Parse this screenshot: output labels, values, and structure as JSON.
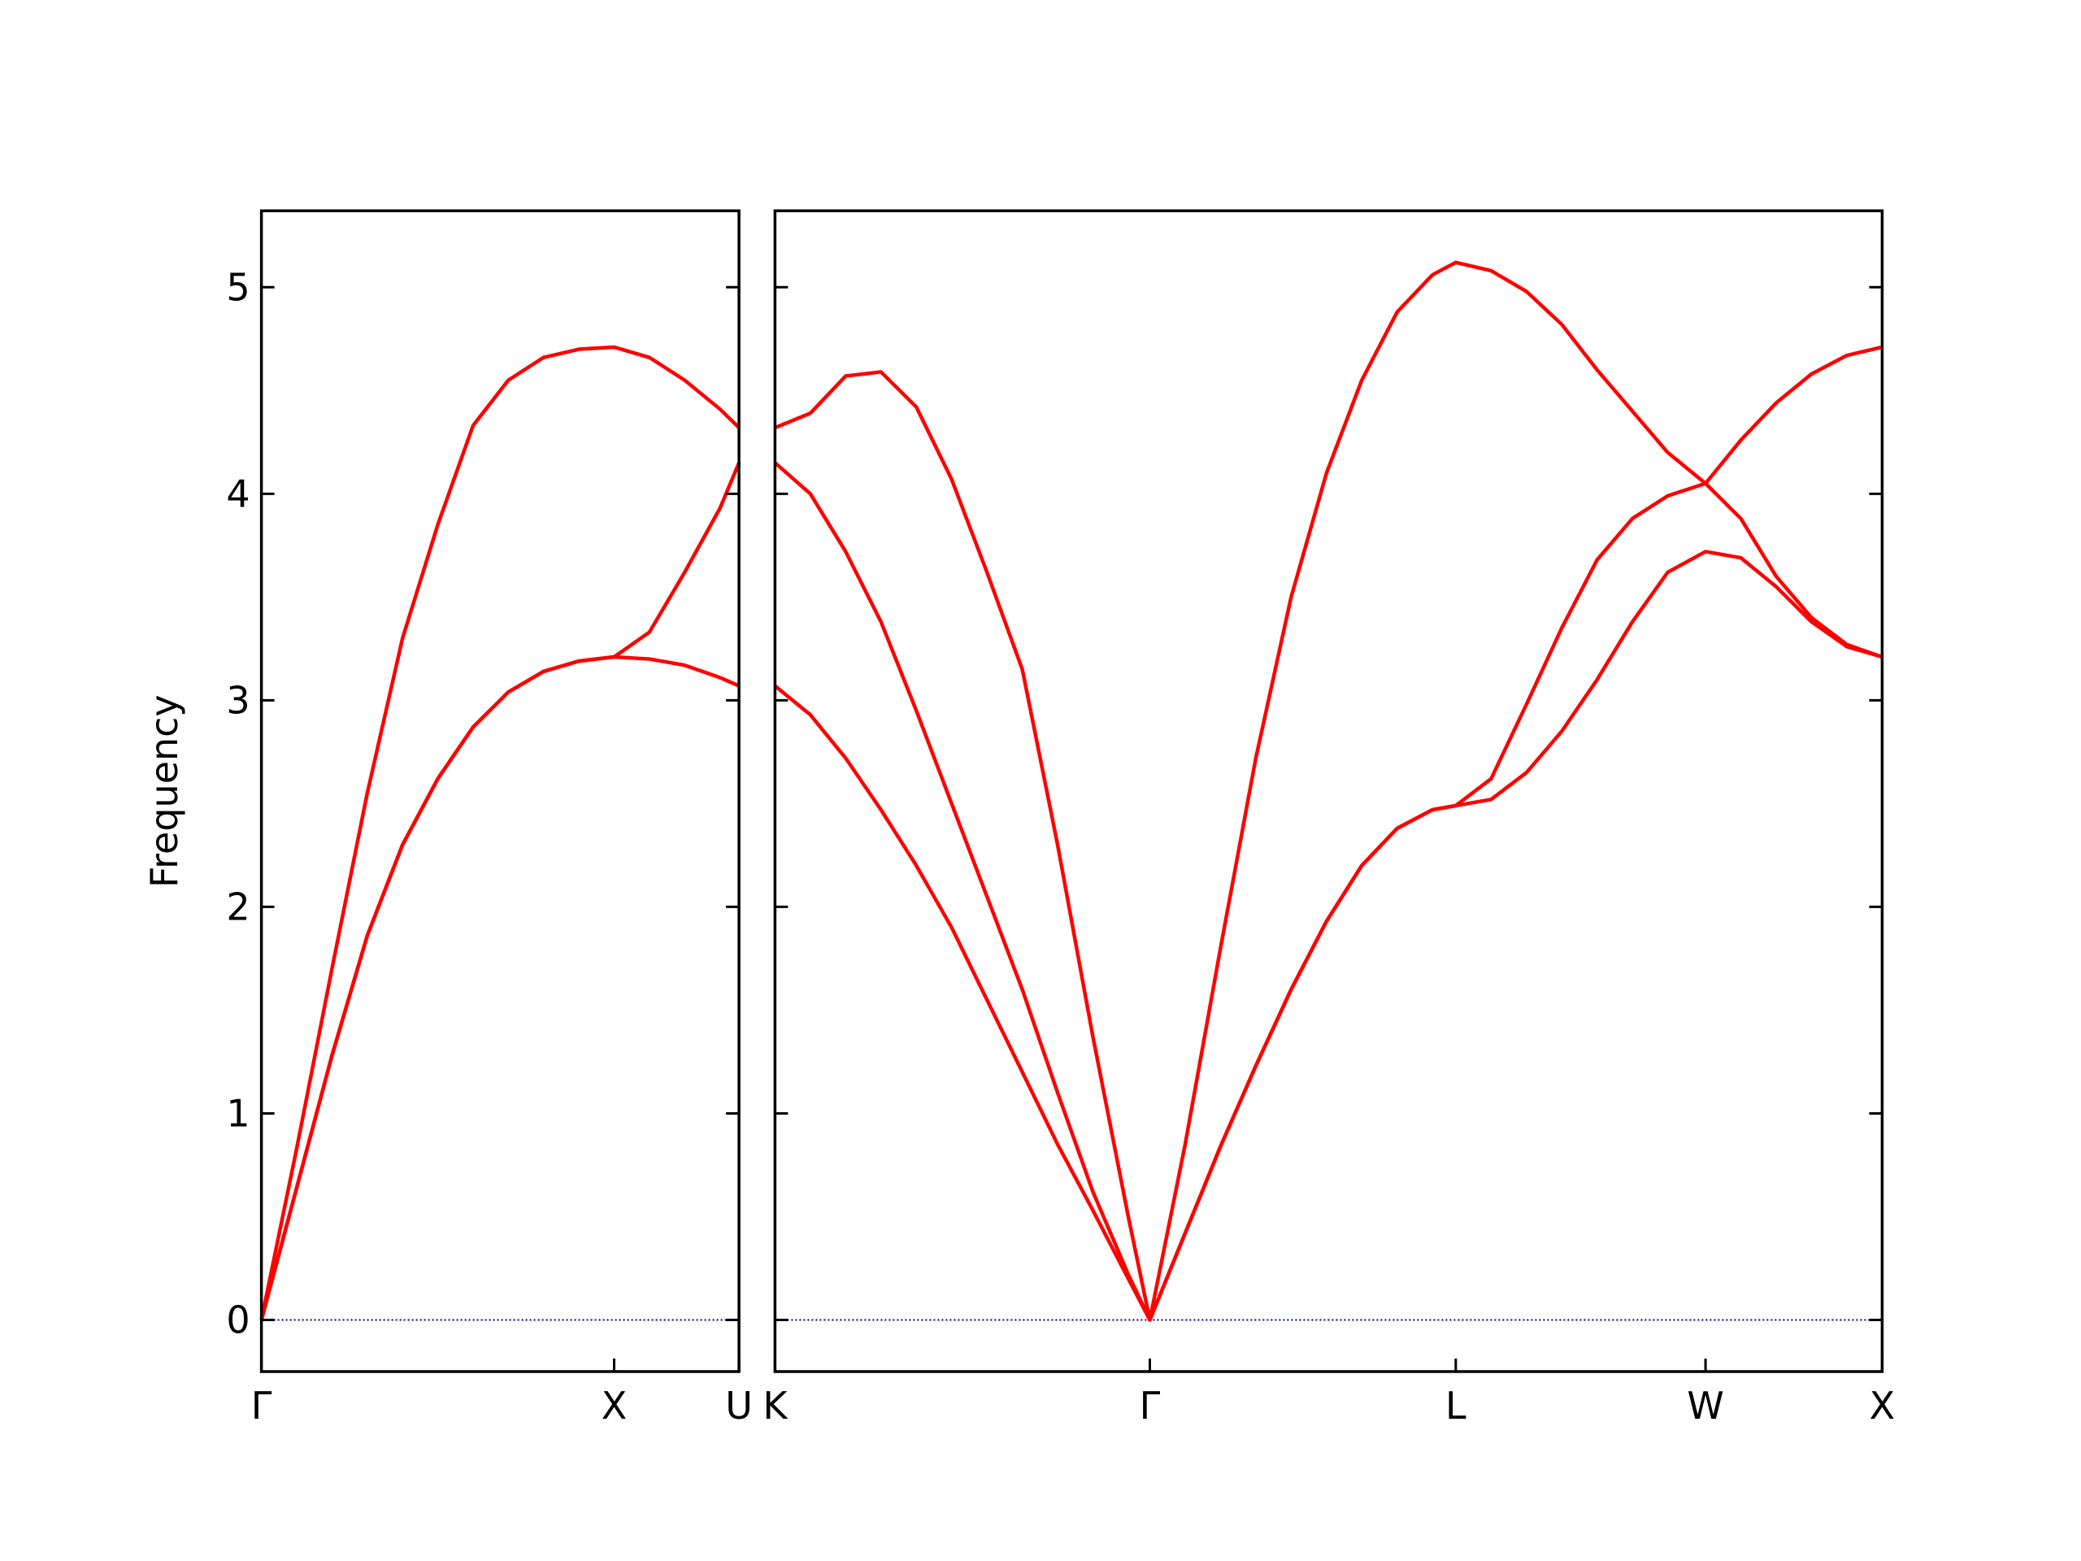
{
  "chart_data": [
    {
      "type": "line",
      "ylabel": "Frequency",
      "x": [
        0,
        0.1,
        0.2,
        0.3,
        0.4,
        0.5,
        0.6,
        0.7,
        0.8,
        0.9,
        1.0,
        1.1,
        1.2,
        1.3,
        1.354
      ],
      "series": [
        {
          "color": "#ff0000",
          "values": [
            0,
            0.83,
            1.7,
            2.55,
            3.3,
            3.85,
            4.33,
            4.55,
            4.66,
            4.7,
            4.71,
            4.66,
            4.55,
            4.41,
            4.32
          ]
        },
        {
          "color": "#ff0000",
          "values": [
            0,
            0.64,
            1.28,
            1.86,
            2.3,
            2.62,
            2.87,
            3.04,
            3.14,
            3.19,
            3.21,
            3.33,
            3.62,
            3.93,
            4.15
          ]
        },
        {
          "color": "#ff0000",
          "values": [
            0,
            0.64,
            1.28,
            1.86,
            2.3,
            2.62,
            2.87,
            3.04,
            3.14,
            3.19,
            3.21,
            3.2,
            3.17,
            3.11,
            3.07
          ]
        }
      ],
      "xlim": [
        0,
        1.354
      ],
      "xticks": [
        {
          "value": 0,
          "label": "Γ"
        },
        {
          "value": 1.0,
          "label": "X"
        },
        {
          "value": 1.354,
          "label": "U"
        }
      ],
      "ylim": [
        -0.25,
        5.37
      ],
      "yticks": [
        0,
        1,
        2,
        3,
        4,
        5
      ],
      "show_ytick_labels": true,
      "hline": 0,
      "hline_color": "#00008b"
    },
    {
      "type": "line",
      "x": [
        1.354,
        1.454,
        1.554,
        1.654,
        1.754,
        1.854,
        1.954,
        2.054,
        2.154,
        2.254,
        2.354,
        2.415,
        2.515,
        2.615,
        2.715,
        2.815,
        2.915,
        3.015,
        3.115,
        3.215,
        3.281,
        3.381,
        3.481,
        3.581,
        3.681,
        3.781,
        3.881,
        3.988,
        4.088,
        4.188,
        4.288,
        4.388,
        4.488
      ],
      "series": [
        {
          "color": "#ff0000",
          "values": [
            4.32,
            4.39,
            4.57,
            4.59,
            4.42,
            4.07,
            3.62,
            3.15,
            2.3,
            1.37,
            0.5,
            0,
            0.85,
            1.8,
            2.72,
            3.5,
            4.1,
            4.55,
            4.88,
            5.06,
            5.12,
            5.08,
            4.98,
            4.82,
            4.6,
            4.4,
            4.2,
            4.05,
            4.26,
            4.44,
            4.58,
            4.67,
            4.71
          ]
        },
        {
          "color": "#ff0000",
          "values": [
            4.15,
            4.0,
            3.72,
            3.38,
            2.95,
            2.5,
            2.05,
            1.6,
            1.1,
            0.62,
            0.22,
            0,
            0.42,
            0.84,
            1.23,
            1.6,
            1.93,
            2.2,
            2.38,
            2.47,
            2.49,
            2.62,
            2.98,
            3.35,
            3.68,
            3.88,
            3.99,
            4.05,
            3.88,
            3.6,
            3.4,
            3.27,
            3.21
          ]
        },
        {
          "color": "#ff0000",
          "values": [
            3.07,
            2.93,
            2.72,
            2.47,
            2.2,
            1.9,
            1.55,
            1.2,
            0.85,
            0.53,
            0.2,
            0,
            0.42,
            0.84,
            1.23,
            1.6,
            1.93,
            2.2,
            2.38,
            2.47,
            2.49,
            2.52,
            2.65,
            2.85,
            3.1,
            3.38,
            3.62,
            3.72,
            3.69,
            3.55,
            3.38,
            3.26,
            3.21
          ]
        }
      ],
      "xlim": [
        1.354,
        4.488
      ],
      "xticks": [
        {
          "value": 1.354,
          "label": "K"
        },
        {
          "value": 2.415,
          "label": "Γ"
        },
        {
          "value": 3.281,
          "label": "L"
        },
        {
          "value": 3.988,
          "label": "W"
        },
        {
          "value": 4.488,
          "label": "X"
        }
      ],
      "ylim": [
        -0.25,
        5.37
      ],
      "yticks": [
        0,
        1,
        2,
        3,
        4,
        5
      ],
      "show_ytick_labels": false,
      "hline": 0,
      "hline_color": "#00008b"
    }
  ]
}
